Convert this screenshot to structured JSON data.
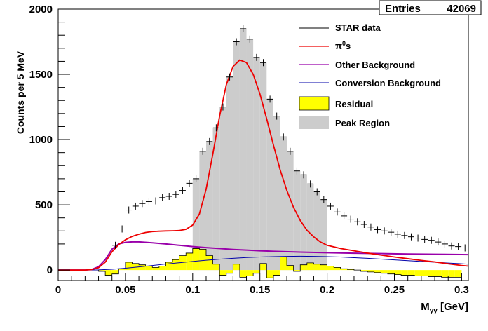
{
  "chart_data": {
    "type": "histogram",
    "xlabel_main": "M",
    "xlabel_sub": "γγ",
    "xlabel_unit": " [GeV]",
    "ylabel": "Counts per 5 MeV",
    "xlim": [
      0,
      0.305
    ],
    "ylim": [
      -80,
      2000
    ],
    "x_ticks": [
      {
        "v": 0,
        "label": "0"
      },
      {
        "v": 0.05,
        "label": "0.05"
      },
      {
        "v": 0.1,
        "label": "0.1"
      },
      {
        "v": 0.15,
        "label": "0.15"
      },
      {
        "v": 0.2,
        "label": "0.2"
      },
      {
        "v": 0.25,
        "label": "0.25"
      },
      {
        "v": 0.3,
        "label": "0.3"
      }
    ],
    "y_ticks": [
      {
        "v": 0,
        "label": "0"
      },
      {
        "v": 500,
        "label": "500"
      },
      {
        "v": 1000,
        "label": "1000"
      },
      {
        "v": 1500,
        "label": "1500"
      },
      {
        "v": 2000,
        "label": "2000"
      }
    ],
    "stats": {
      "label": "Entries",
      "value": "42069"
    },
    "legend": [
      {
        "name": "STAR data",
        "style": "line",
        "color": "#000000"
      },
      {
        "name": "π",
        "name_sup": "0",
        "name_suffix": "s",
        "style": "line",
        "color": "#ee0000"
      },
      {
        "name": "Other Background",
        "style": "line",
        "color": "#9900aa"
      },
      {
        "name": "Conversion Background",
        "style": "line",
        "color": "#0000aa"
      },
      {
        "name": "Residual",
        "style": "fill",
        "color": "#ffff00"
      },
      {
        "name": "Peak Region",
        "style": "fill",
        "color": "#cccccc"
      }
    ],
    "data_points": [
      {
        "x": 0.0425,
        "y": 190
      },
      {
        "x": 0.0475,
        "y": 315
      },
      {
        "x": 0.0525,
        "y": 460
      },
      {
        "x": 0.0575,
        "y": 490
      },
      {
        "x": 0.0625,
        "y": 510
      },
      {
        "x": 0.0675,
        "y": 525
      },
      {
        "x": 0.0725,
        "y": 530
      },
      {
        "x": 0.0775,
        "y": 555
      },
      {
        "x": 0.0825,
        "y": 565
      },
      {
        "x": 0.0875,
        "y": 580
      },
      {
        "x": 0.0925,
        "y": 610
      },
      {
        "x": 0.0975,
        "y": 665
      },
      {
        "x": 0.1025,
        "y": 700
      },
      {
        "x": 0.1075,
        "y": 910
      },
      {
        "x": 0.1125,
        "y": 985
      },
      {
        "x": 0.1175,
        "y": 1090
      },
      {
        "x": 0.1225,
        "y": 1250
      },
      {
        "x": 0.1275,
        "y": 1480
      },
      {
        "x": 0.1325,
        "y": 1750
      },
      {
        "x": 0.1375,
        "y": 1850
      },
      {
        "x": 0.1425,
        "y": 1770
      },
      {
        "x": 0.1475,
        "y": 1630
      },
      {
        "x": 0.1525,
        "y": 1590
      },
      {
        "x": 0.1575,
        "y": 1310
      },
      {
        "x": 0.1625,
        "y": 1180
      },
      {
        "x": 0.1675,
        "y": 1020
      },
      {
        "x": 0.1725,
        "y": 910
      },
      {
        "x": 0.1775,
        "y": 760
      },
      {
        "x": 0.1825,
        "y": 730
      },
      {
        "x": 0.1875,
        "y": 660
      },
      {
        "x": 0.1925,
        "y": 600
      },
      {
        "x": 0.1975,
        "y": 540
      },
      {
        "x": 0.2025,
        "y": 490
      },
      {
        "x": 0.2075,
        "y": 445
      },
      {
        "x": 0.2125,
        "y": 415
      },
      {
        "x": 0.2175,
        "y": 390
      },
      {
        "x": 0.2225,
        "y": 370
      },
      {
        "x": 0.2275,
        "y": 350
      },
      {
        "x": 0.2325,
        "y": 330
      },
      {
        "x": 0.2375,
        "y": 310
      },
      {
        "x": 0.2425,
        "y": 300
      },
      {
        "x": 0.2475,
        "y": 290
      },
      {
        "x": 0.2525,
        "y": 275
      },
      {
        "x": 0.2575,
        "y": 265
      },
      {
        "x": 0.2625,
        "y": 255
      },
      {
        "x": 0.2675,
        "y": 245
      },
      {
        "x": 0.2725,
        "y": 235
      },
      {
        "x": 0.2775,
        "y": 228
      },
      {
        "x": 0.2825,
        "y": 215
      },
      {
        "x": 0.2875,
        "y": 200
      },
      {
        "x": 0.2925,
        "y": 185
      },
      {
        "x": 0.2975,
        "y": 180
      },
      {
        "x": 0.3025,
        "y": 170
      }
    ],
    "peak_region": {
      "bin_width": 0.005,
      "bins": [
        {
          "x": 0.1025,
          "y": 700
        },
        {
          "x": 0.1075,
          "y": 910
        },
        {
          "x": 0.1125,
          "y": 985
        },
        {
          "x": 0.1175,
          "y": 1090
        },
        {
          "x": 0.1225,
          "y": 1250
        },
        {
          "x": 0.1275,
          "y": 1480
        },
        {
          "x": 0.1325,
          "y": 1750
        },
        {
          "x": 0.1375,
          "y": 1850
        },
        {
          "x": 0.1425,
          "y": 1770
        },
        {
          "x": 0.1475,
          "y": 1630
        },
        {
          "x": 0.1525,
          "y": 1590
        },
        {
          "x": 0.1575,
          "y": 1310
        },
        {
          "x": 0.1625,
          "y": 1180
        },
        {
          "x": 0.1675,
          "y": 1020
        },
        {
          "x": 0.1725,
          "y": 910
        },
        {
          "x": 0.1775,
          "y": 760
        },
        {
          "x": 0.1825,
          "y": 730
        },
        {
          "x": 0.1875,
          "y": 660
        },
        {
          "x": 0.1925,
          "y": 600
        },
        {
          "x": 0.1975,
          "y": 540
        }
      ]
    },
    "residual": {
      "bin_width": 0.005,
      "bins": [
        {
          "x": 0.0325,
          "y": -10
        },
        {
          "x": 0.0375,
          "y": -40
        },
        {
          "x": 0.0425,
          "y": -30
        },
        {
          "x": 0.0475,
          "y": 10
        },
        {
          "x": 0.0525,
          "y": 60
        },
        {
          "x": 0.0575,
          "y": 50
        },
        {
          "x": 0.0625,
          "y": 40
        },
        {
          "x": 0.0675,
          "y": 30
        },
        {
          "x": 0.0725,
          "y": 20
        },
        {
          "x": 0.0775,
          "y": 30
        },
        {
          "x": 0.0825,
          "y": 60
        },
        {
          "x": 0.0875,
          "y": 80
        },
        {
          "x": 0.0925,
          "y": 110
        },
        {
          "x": 0.0975,
          "y": 130
        },
        {
          "x": 0.1025,
          "y": 165
        },
        {
          "x": 0.1075,
          "y": 160
        },
        {
          "x": 0.1125,
          "y": 110
        },
        {
          "x": 0.1175,
          "y": 45
        },
        {
          "x": 0.1225,
          "y": -40
        },
        {
          "x": 0.1275,
          "y": -25
        },
        {
          "x": 0.1325,
          "y": 45
        },
        {
          "x": 0.1375,
          "y": -55
        },
        {
          "x": 0.1425,
          "y": -45
        },
        {
          "x": 0.1475,
          "y": -25
        },
        {
          "x": 0.1525,
          "y": 50
        },
        {
          "x": 0.1575,
          "y": -60
        },
        {
          "x": 0.1625,
          "y": -40
        },
        {
          "x": 0.1675,
          "y": 100
        },
        {
          "x": 0.1725,
          "y": 35
        },
        {
          "x": 0.1775,
          "y": -10
        },
        {
          "x": 0.1825,
          "y": 40
        },
        {
          "x": 0.1875,
          "y": 55
        },
        {
          "x": 0.1925,
          "y": 45
        },
        {
          "x": 0.1975,
          "y": 40
        },
        {
          "x": 0.2025,
          "y": 30
        },
        {
          "x": 0.2075,
          "y": 20
        },
        {
          "x": 0.2125,
          "y": 10
        },
        {
          "x": 0.2175,
          "y": 5
        },
        {
          "x": 0.2225,
          "y": 0
        },
        {
          "x": 0.2275,
          "y": -10
        },
        {
          "x": 0.2325,
          "y": -15
        },
        {
          "x": 0.2375,
          "y": -20
        },
        {
          "x": 0.2425,
          "y": -25
        },
        {
          "x": 0.2475,
          "y": -30
        },
        {
          "x": 0.2525,
          "y": -35
        },
        {
          "x": 0.2575,
          "y": -40
        },
        {
          "x": 0.2625,
          "y": -40
        },
        {
          "x": 0.2675,
          "y": -45
        },
        {
          "x": 0.2725,
          "y": -45
        },
        {
          "x": 0.2775,
          "y": -50
        },
        {
          "x": 0.2825,
          "y": -50
        },
        {
          "x": 0.2875,
          "y": -55
        },
        {
          "x": 0.2925,
          "y": -55
        },
        {
          "x": 0.2975,
          "y": -55
        }
      ]
    },
    "curves": {
      "pi0": [
        [
          0,
          0
        ],
        [
          0.02,
          0
        ],
        [
          0.025,
          4
        ],
        [
          0.03,
          18
        ],
        [
          0.035,
          60
        ],
        [
          0.04,
          140
        ],
        [
          0.045,
          195
        ],
        [
          0.05,
          232
        ],
        [
          0.055,
          258
        ],
        [
          0.06,
          275
        ],
        [
          0.065,
          288
        ],
        [
          0.07,
          295
        ],
        [
          0.075,
          298
        ],
        [
          0.08,
          300
        ],
        [
          0.085,
          301
        ],
        [
          0.09,
          303
        ],
        [
          0.095,
          312
        ],
        [
          0.1,
          345
        ],
        [
          0.105,
          430
        ],
        [
          0.11,
          620
        ],
        [
          0.115,
          890
        ],
        [
          0.12,
          1180
        ],
        [
          0.125,
          1420
        ],
        [
          0.13,
          1560
        ],
        [
          0.135,
          1610
        ],
        [
          0.14,
          1590
        ],
        [
          0.145,
          1500
        ],
        [
          0.15,
          1350
        ],
        [
          0.155,
          1160
        ],
        [
          0.16,
          960
        ],
        [
          0.165,
          770
        ],
        [
          0.17,
          610
        ],
        [
          0.175,
          480
        ],
        [
          0.18,
          380
        ],
        [
          0.185,
          305
        ],
        [
          0.19,
          255
        ],
        [
          0.195,
          215
        ],
        [
          0.2,
          190
        ],
        [
          0.21,
          165
        ],
        [
          0.22,
          148
        ],
        [
          0.23,
          130
        ],
        [
          0.24,
          115
        ],
        [
          0.25,
          100
        ],
        [
          0.26,
          87
        ],
        [
          0.27,
          74
        ],
        [
          0.28,
          62
        ],
        [
          0.29,
          48
        ],
        [
          0.3,
          35
        ],
        [
          0.305,
          30
        ]
      ],
      "other_background": [
        [
          0,
          0
        ],
        [
          0.02,
          0
        ],
        [
          0.025,
          5
        ],
        [
          0.03,
          25
        ],
        [
          0.035,
          80
        ],
        [
          0.04,
          160
        ],
        [
          0.045,
          200
        ],
        [
          0.05,
          212
        ],
        [
          0.055,
          216
        ],
        [
          0.06,
          216
        ],
        [
          0.07,
          209
        ],
        [
          0.08,
          200
        ],
        [
          0.09,
          190
        ],
        [
          0.1,
          180
        ],
        [
          0.11,
          172
        ],
        [
          0.12,
          165
        ],
        [
          0.13,
          158
        ],
        [
          0.14,
          153
        ],
        [
          0.15,
          148
        ],
        [
          0.16,
          144
        ],
        [
          0.18,
          138
        ],
        [
          0.2,
          133
        ],
        [
          0.22,
          129
        ],
        [
          0.24,
          126
        ],
        [
          0.26,
          123
        ],
        [
          0.28,
          121
        ],
        [
          0.3,
          119
        ],
        [
          0.305,
          118
        ]
      ],
      "conversion_background": [
        [
          0,
          0
        ],
        [
          0.02,
          0
        ],
        [
          0.03,
          1
        ],
        [
          0.04,
          6
        ],
        [
          0.05,
          14
        ],
        [
          0.06,
          24
        ],
        [
          0.07,
          35
        ],
        [
          0.08,
          46
        ],
        [
          0.09,
          56
        ],
        [
          0.1,
          66
        ],
        [
          0.11,
          75
        ],
        [
          0.12,
          83
        ],
        [
          0.13,
          90
        ],
        [
          0.14,
          96
        ],
        [
          0.15,
          100
        ],
        [
          0.16,
          103
        ],
        [
          0.17,
          105
        ],
        [
          0.18,
          106
        ],
        [
          0.19,
          105
        ],
        [
          0.2,
          103
        ],
        [
          0.21,
          100
        ],
        [
          0.22,
          95
        ],
        [
          0.23,
          90
        ],
        [
          0.24,
          84
        ],
        [
          0.25,
          78
        ],
        [
          0.26,
          72
        ],
        [
          0.27,
          66
        ],
        [
          0.28,
          60
        ],
        [
          0.29,
          54
        ],
        [
          0.3,
          48
        ],
        [
          0.305,
          45
        ]
      ]
    }
  }
}
